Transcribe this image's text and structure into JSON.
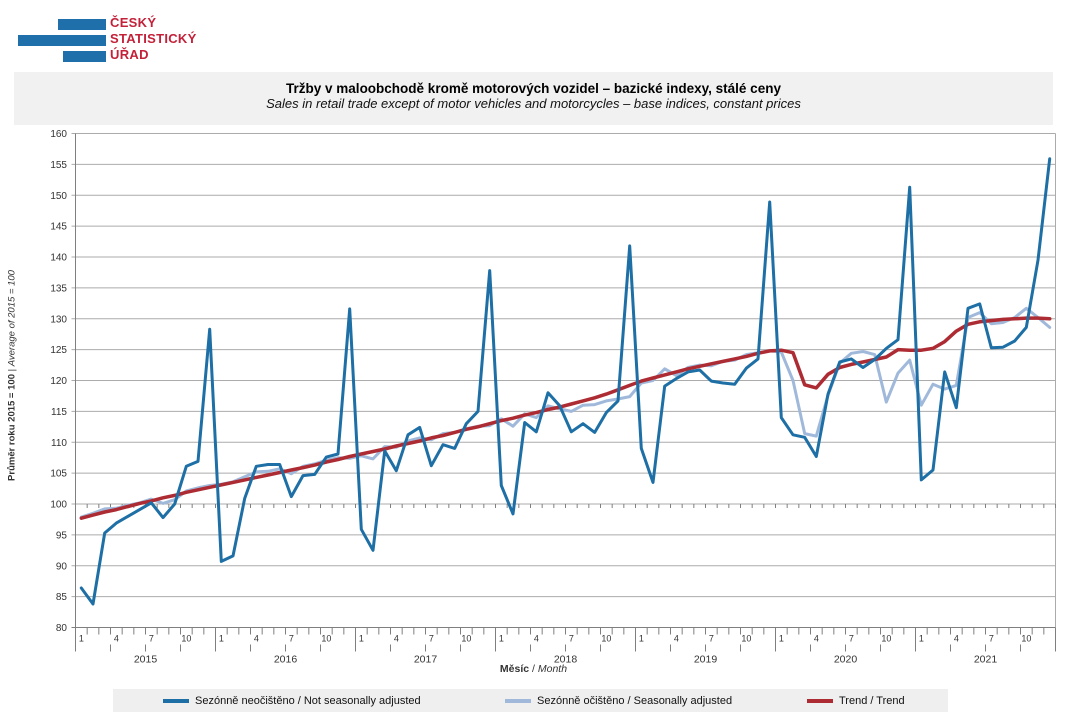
{
  "logo": {
    "lines": [
      "ČESKÝ",
      "STATISTICKÝ",
      "ÚŘAD"
    ],
    "bar_color": "#1f6fab",
    "text_color": "#c32139"
  },
  "header": {
    "title_cs": "Tržby v maloobchodě kromě motorových vozidel – bazické indexy, stálé ceny",
    "title_en": "Sales in retail trade except of motor vehicles and motorcycles – base indices, constant prices"
  },
  "chart_data": {
    "type": "line",
    "ylabel_cs": "Průměr roku 2015 = 100",
    "ylabel_en": "Average of 2015 = 100",
    "xlabel_cs": "Měsíc",
    "xlabel_en": "Month",
    "ylim": [
      80,
      160
    ],
    "ytick_step": 5,
    "yticks": [
      80,
      85,
      90,
      95,
      100,
      105,
      110,
      115,
      120,
      125,
      130,
      135,
      140,
      145,
      150,
      155,
      160
    ],
    "grid": "horizontal",
    "legend_position": "bottom",
    "years": [
      2015,
      2016,
      2017,
      2018,
      2019,
      2020,
      2021
    ],
    "month_tick_labels": [
      1,
      4,
      7,
      10
    ],
    "series": [
      {
        "name": "nsa",
        "label": "Sezónně neočištěno / Not seasonally adjusted",
        "color": "#1d6fa5",
        "width": 3,
        "values": [
          86.4,
          83.8,
          95.3,
          96.9,
          98.0,
          99.1,
          100.2,
          97.8,
          100.0,
          106.1,
          106.9,
          128.3,
          90.7,
          91.6,
          100.9,
          106.1,
          106.4,
          106.4,
          101.2,
          104.6,
          104.8,
          107.6,
          108.1,
          131.6,
          95.9,
          92.5,
          108.6,
          105.4,
          111.2,
          112.4,
          106.2,
          109.6,
          109.0,
          113.0,
          115.0,
          137.8,
          103.0,
          98.4,
          113.2,
          111.7,
          118.0,
          115.9,
          111.7,
          113.0,
          111.6,
          114.8,
          116.7,
          141.8,
          109.0,
          103.5,
          119.1,
          120.3,
          121.4,
          121.7,
          119.9,
          119.6,
          119.4,
          122.0,
          123.5,
          148.9,
          114.0,
          111.2,
          110.8,
          107.7,
          117.8,
          123.0,
          123.5,
          122.1,
          123.4,
          125.2,
          126.6,
          151.3,
          103.9,
          105.5,
          121.4,
          115.6,
          131.7,
          132.4,
          125.3,
          125.4,
          126.4,
          128.6,
          139.5,
          155.9
        ]
      },
      {
        "name": "sa",
        "label": "Sezónně očištěno / Seasonally adjusted",
        "color": "#a0b9db",
        "width": 3,
        "values": [
          97.9,
          98.5,
          99.2,
          99.3,
          99.8,
          100.2,
          100.8,
          100.1,
          100.7,
          102.1,
          102.6,
          103.0,
          103.2,
          103.6,
          104.4,
          105.2,
          105.3,
          105.7,
          104.9,
          106.1,
          106.5,
          107.1,
          107.5,
          107.4,
          107.8,
          107.3,
          109.3,
          109.2,
          110.2,
          110.7,
          110.4,
          111.4,
          111.6,
          112.2,
          112.6,
          112.7,
          113.8,
          112.6,
          114.6,
          114.0,
          115.9,
          115.4,
          115.0,
          116.0,
          116.1,
          116.7,
          117.0,
          117.4,
          119.6,
          120.0,
          121.9,
          120.8,
          122.1,
          122.5,
          122.4,
          123.1,
          123.3,
          124.2,
          124.5,
          124.8,
          124.6,
          120.0,
          111.4,
          111.0,
          117.6,
          122.8,
          124.4,
          124.7,
          124.2,
          116.5,
          121.2,
          123.3,
          116.0,
          119.4,
          118.6,
          119.2,
          130.2,
          131.0,
          129.2,
          129.4,
          130.2,
          131.7,
          130.2,
          128.6
        ]
      },
      {
        "name": "trend",
        "label": "Trend / Trend",
        "color": "#ad2b33",
        "width": 3.5,
        "values": [
          97.7,
          98.2,
          98.7,
          99.1,
          99.6,
          100.1,
          100.5,
          101.0,
          101.4,
          101.9,
          102.3,
          102.7,
          103.1,
          103.5,
          103.9,
          104.3,
          104.7,
          105.1,
          105.5,
          105.9,
          106.3,
          106.8,
          107.2,
          107.7,
          108.1,
          108.5,
          108.9,
          109.4,
          109.8,
          110.2,
          110.7,
          111.1,
          111.6,
          112.1,
          112.5,
          113.0,
          113.5,
          113.9,
          114.4,
          114.8,
          115.3,
          115.7,
          116.2,
          116.7,
          117.2,
          117.8,
          118.5,
          119.2,
          119.9,
          120.4,
          120.9,
          121.4,
          121.9,
          122.3,
          122.7,
          123.1,
          123.5,
          123.9,
          124.4,
          124.8,
          124.9,
          124.5,
          119.3,
          118.8,
          121.0,
          122.1,
          122.6,
          123.0,
          123.4,
          123.8,
          125.0,
          124.9,
          124.9,
          125.2,
          126.3,
          128.0,
          129.1,
          129.5,
          129.7,
          129.9,
          130.0,
          130.1,
          130.1,
          130.0
        ]
      }
    ]
  }
}
